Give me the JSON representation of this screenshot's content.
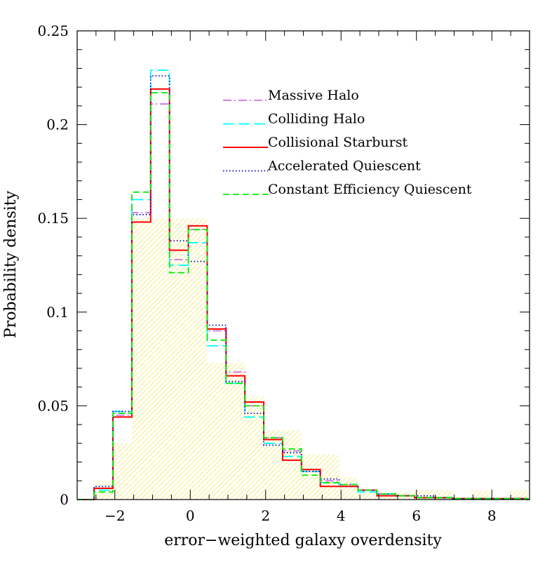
{
  "chart_data": {
    "type": "histogram",
    "title": "",
    "xlabel": "error−weighted galaxy overdensity",
    "ylabel": "Probability density",
    "xlim": [
      -3,
      9
    ],
    "ylim": [
      0,
      0.25
    ],
    "x_ticks": [
      -2,
      0,
      2,
      4,
      6,
      8
    ],
    "x_tick_labels": [
      "−2",
      "0",
      "2",
      "4",
      "6",
      "8"
    ],
    "y_ticks": [
      0,
      0.05,
      0.1,
      0.15,
      0.2,
      0.25
    ],
    "y_tick_labels": [
      "0",
      "0.05",
      "0.1",
      "0.15",
      "0.2",
      "0.25"
    ],
    "legend_position": "upper-right",
    "bin_edges": [
      -2.55,
      -2.05,
      -1.55,
      -1.05,
      -0.55,
      -0.05,
      0.45,
      0.95,
      1.45,
      1.95,
      2.45,
      2.95,
      3.45,
      3.95,
      4.45,
      4.95,
      5.45,
      5.95,
      6.45,
      6.95,
      7.45,
      7.95,
      8.45,
      8.95
    ],
    "reference_observed": {
      "name": "",
      "color": "#ffff99",
      "values": [
        0.01,
        0.03,
        0.15,
        0.15,
        0.15,
        0.15,
        0.073,
        0.073,
        0.055,
        0.037,
        0.037,
        0.024,
        0.024,
        0.012,
        0.004,
        0.004,
        0.004,
        0.005,
        0.005,
        0.0,
        0.005,
        0.0,
        0.005
      ]
    },
    "series": [
      {
        "name": "Massive Halo",
        "style": "dash-dot",
        "color": "#d070e0",
        "values": [
          0.006,
          0.045,
          0.153,
          0.211,
          0.128,
          0.144,
          0.09,
          0.068,
          0.05,
          0.033,
          0.026,
          0.016,
          0.01,
          0.007,
          0.005,
          0.003,
          0.002,
          0.001,
          0.001,
          0.0005,
          0.0005,
          0.0005,
          0.0005
        ]
      },
      {
        "name": "Colliding Halo",
        "style": "long-dash",
        "color": "#00ffff",
        "values": [
          0.005,
          0.047,
          0.16,
          0.229,
          0.125,
          0.137,
          0.082,
          0.062,
          0.044,
          0.03,
          0.023,
          0.015,
          0.009,
          0.007,
          0.004,
          0.003,
          0.002,
          0.001,
          0.001,
          0.0005,
          0.0005,
          0.0005,
          0.0005
        ]
      },
      {
        "name": "Collisional Starburst",
        "style": "solid",
        "color": "#ff0000",
        "values": [
          0.006,
          0.044,
          0.148,
          0.219,
          0.133,
          0.146,
          0.091,
          0.066,
          0.052,
          0.032,
          0.021,
          0.016,
          0.007,
          0.007,
          0.005,
          0.002,
          0.002,
          0.001,
          0.001,
          0.0005,
          0.0005,
          0.0005,
          0.0005
        ]
      },
      {
        "name": "Accelerated Quiescent",
        "style": "dotted",
        "color": "#0000cc",
        "values": [
          0.007,
          0.047,
          0.152,
          0.226,
          0.138,
          0.127,
          0.093,
          0.063,
          0.046,
          0.029,
          0.025,
          0.015,
          0.011,
          0.008,
          0.005,
          0.003,
          0.002,
          0.002,
          0.001,
          0.0005,
          0.0005,
          0.0005,
          0.0005
        ]
      },
      {
        "name": "Constant Efficiency Quiescent",
        "style": "dashed",
        "color": "#00ee00",
        "values": [
          0.004,
          0.046,
          0.164,
          0.217,
          0.121,
          0.144,
          0.085,
          0.062,
          0.05,
          0.033,
          0.027,
          0.013,
          0.009,
          0.008,
          0.005,
          0.003,
          0.002,
          0.001,
          0.001,
          0.0005,
          0.0005,
          0.0005,
          0.0005
        ]
      }
    ]
  }
}
